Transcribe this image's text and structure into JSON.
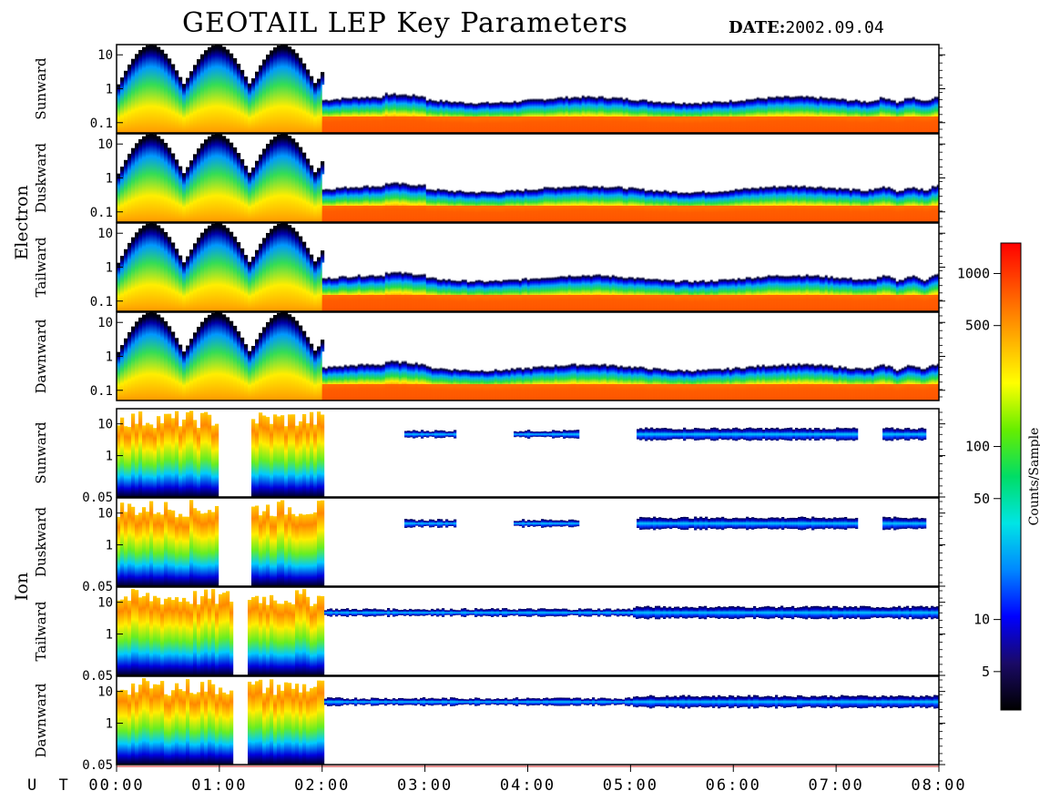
{
  "title": "GEOTAIL LEP Key Parameters",
  "date_label": "DATE:",
  "date_value": "2002.09.04",
  "chart_data": {
    "type": "heatmap",
    "title": "GEOTAIL LEP Key Parameters",
    "date": "2002.09.04",
    "x_axis": {
      "label": "U T",
      "range": [
        "00:00",
        "08:00"
      ],
      "ticks": [
        "00:00",
        "01:00",
        "02:00",
        "03:00",
        "04:00",
        "05:00",
        "06:00",
        "07:00",
        "08:00"
      ]
    },
    "y_scale": "log",
    "groups": [
      {
        "name": "Electron",
        "panels": [
          {
            "name": "Sunward",
            "y_ticks": [
              "10",
              "1",
              "0.1"
            ],
            "ylim": [
              0.05,
              20
            ]
          },
          {
            "name": "Duskward",
            "y_ticks": [
              "10",
              "1",
              "0.1"
            ],
            "ylim": [
              0.05,
              20
            ]
          },
          {
            "name": "Tailward",
            "y_ticks": [
              "10",
              "1",
              "0.1"
            ],
            "ylim": [
              0.05,
              20
            ]
          },
          {
            "name": "Dawnward",
            "y_ticks": [
              "10",
              "1",
              "0.1"
            ],
            "ylim": [
              0.05,
              20
            ]
          }
        ]
      },
      {
        "name": "Ion",
        "panels": [
          {
            "name": "Sunward",
            "y_ticks": [
              "10",
              "1",
              "0.05"
            ],
            "ylim": [
              0.05,
              30
            ]
          },
          {
            "name": "Duskward",
            "y_ticks": [
              "10",
              "1",
              "0.05"
            ],
            "ylim": [
              0.05,
              30
            ]
          },
          {
            "name": "Tailward",
            "y_ticks": [
              "10",
              "1",
              "0.05"
            ],
            "ylim": [
              0.05,
              30
            ]
          },
          {
            "name": "Dawnward",
            "y_ticks": [
              "10",
              "1",
              "0.05"
            ],
            "ylim": [
              0.05,
              30
            ]
          }
        ]
      }
    ],
    "colorbar": {
      "label": "Counts/Sample",
      "scale": "log",
      "range": [
        3,
        1500
      ],
      "ticks": [
        "1000",
        "500",
        "100",
        "50",
        "10",
        "5"
      ],
      "tick_values": [
        1000,
        500,
        100,
        50,
        10,
        5
      ],
      "colormap": [
        "#000000",
        "#1a0a66",
        "#0000ff",
        "#0088ff",
        "#00e5e5",
        "#00dd66",
        "#66ee00",
        "#ffff00",
        "#ffaa00",
        "#ff5500",
        "#ff0000"
      ]
    }
  }
}
